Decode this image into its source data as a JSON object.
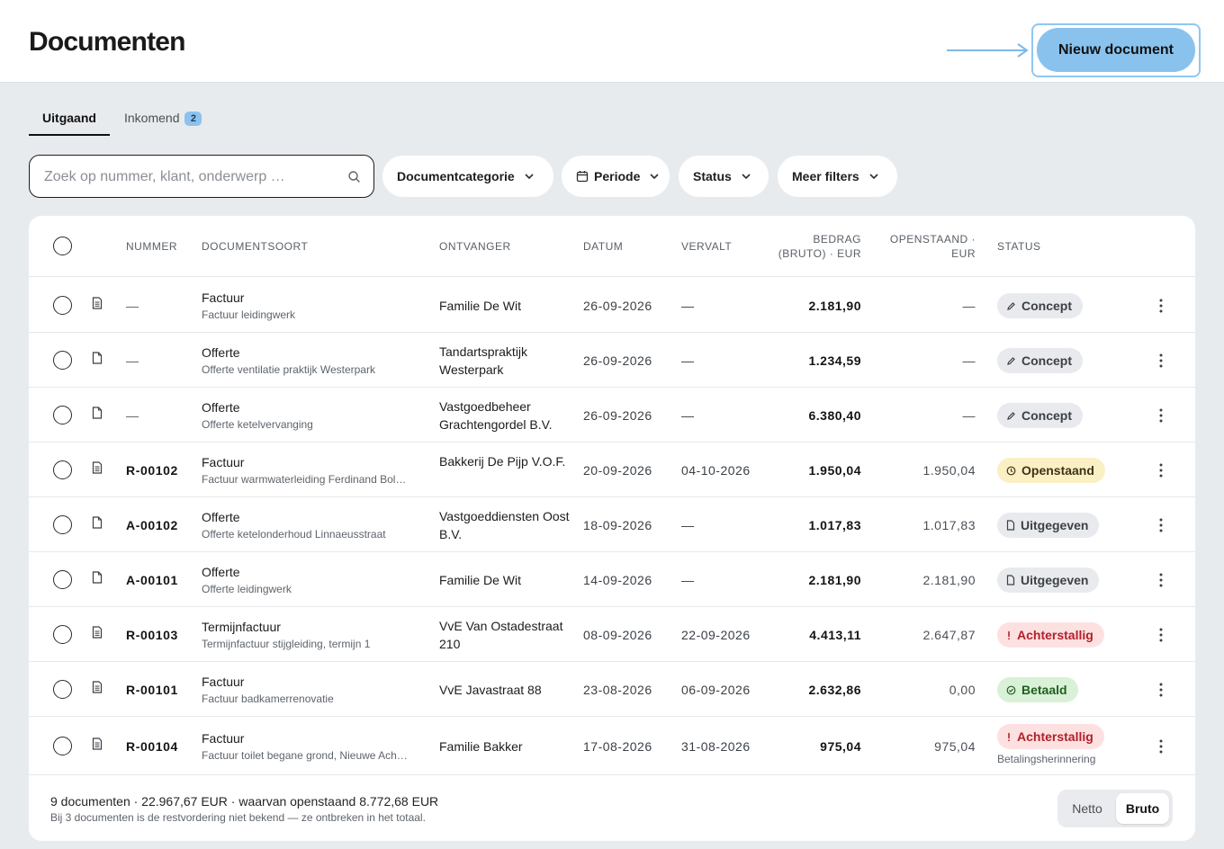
{
  "header": {
    "title": "Documenten",
    "new_button": "Nieuw document"
  },
  "tabs": [
    {
      "label": "Uitgaand",
      "active": true
    },
    {
      "label": "Inkomend",
      "badge": "2",
      "active": false
    }
  ],
  "search": {
    "placeholder": "Zoek op nummer, klant, onderwerp …",
    "value": ""
  },
  "filters": {
    "category": "Documentcategorie",
    "period": "Periode",
    "status": "Status",
    "more": "Meer filters"
  },
  "table": {
    "columns": {
      "number": "NUMMER",
      "type": "DOCUMENTSOORT",
      "recipient": "ONTVANGER",
      "date": "DATUM",
      "due": "VERVALT",
      "amount_line1": "BEDRAG",
      "amount_line2": "(BRUTO) · EUR",
      "open_line1": "OPENSTAAND ·",
      "open_line2": "EUR",
      "status": "STATUS"
    },
    "rows": [
      {
        "number": "—",
        "icon": "invoice-icon",
        "type": "Factuur",
        "subject": "Factuur leidingwerk",
        "recipient": "Familie De Wit",
        "date": "26-09-2026",
        "due": "—",
        "amount": "2.181,90",
        "open": "—",
        "status": "Concept",
        "status_kind": "concept"
      },
      {
        "number": "—",
        "icon": "quote-icon",
        "type": "Offerte",
        "subject": "Offerte ventilatie praktijk Westerpark",
        "recipient": "Tandartspraktijk Westerpark",
        "date": "26-09-2026",
        "due": "—",
        "amount": "1.234,59",
        "open": "—",
        "status": "Concept",
        "status_kind": "concept"
      },
      {
        "number": "—",
        "icon": "quote-icon",
        "type": "Offerte",
        "subject": "Offerte ketelvervanging",
        "recipient": "Vastgoedbeheer Grachtengordel B.V.",
        "date": "26-09-2026",
        "due": "—",
        "amount": "6.380,40",
        "open": "—",
        "status": "Concept",
        "status_kind": "concept"
      },
      {
        "number": "R-00102",
        "icon": "invoice-icon",
        "type": "Factuur",
        "subject": "Factuur warmwaterleiding Ferdinand Bol…",
        "recipient": "Bakkerij De Pijp V.O.F.",
        "date": "20-09-2026",
        "due": "04-10-2026",
        "amount": "1.950,04",
        "open": "1.950,04",
        "status": "Openstaand",
        "status_kind": "open"
      },
      {
        "number": "A-00102",
        "icon": "quote-icon",
        "type": "Offerte",
        "subject": "Offerte ketelonderhoud Linnaeusstraat",
        "recipient": "Vastgoeddiensten Oost B.V.",
        "date": "18-09-2026",
        "due": "—",
        "amount": "1.017,83",
        "open": "1.017,83",
        "status": "Uitgegeven",
        "status_kind": "issued"
      },
      {
        "number": "A-00101",
        "icon": "quote-icon",
        "type": "Offerte",
        "subject": "Offerte leidingwerk",
        "recipient": "Familie De Wit",
        "date": "14-09-2026",
        "due": "—",
        "amount": "2.181,90",
        "open": "2.181,90",
        "status": "Uitgegeven",
        "status_kind": "issued"
      },
      {
        "number": "R-00103",
        "icon": "invoice-icon",
        "type": "Termijnfactuur",
        "subject": "Termijnfactuur stijgleiding, termijn 1",
        "recipient": "VvE Van Ostadestraat 210",
        "date": "08-09-2026",
        "due": "22-09-2026",
        "amount": "4.413,11",
        "open": "2.647,87",
        "status": "Achterstallig",
        "status_kind": "late"
      },
      {
        "number": "R-00101",
        "icon": "invoice-icon",
        "type": "Factuur",
        "subject": "Factuur badkamerrenovatie",
        "recipient": "VvE Javastraat 88",
        "date": "23-08-2026",
        "due": "06-09-2026",
        "amount": "2.632,86",
        "open": "0,00",
        "status": "Betaald",
        "status_kind": "paid"
      },
      {
        "number": "R-00104",
        "icon": "invoice-icon",
        "type": "Factuur",
        "subject": "Factuur toilet begane grond, Nieuwe Ach…",
        "recipient": "Familie Bakker",
        "date": "17-08-2026",
        "due": "31-08-2026",
        "amount": "975,04",
        "open": "975,04",
        "status": "Achterstallig",
        "status_kind": "late",
        "note": "Betalingsherinnering"
      }
    ]
  },
  "footer": {
    "summary": "9 documenten · 22.967,67 EUR · waarvan openstaand 8.772,68 EUR",
    "note": "Bij 3 documenten is de restvordering niet bekend — ze ontbreken in het totaal.",
    "toggle_netto": "Netto",
    "toggle_bruto": "Bruto",
    "toggle_selected": "Bruto"
  },
  "colors": {
    "accent": "#8ac2ee",
    "background": "#e8ebee",
    "concept": "#e8eaed",
    "open": "#fbefc4",
    "late": "#fde1e1",
    "paid": "#d9f1d6"
  }
}
